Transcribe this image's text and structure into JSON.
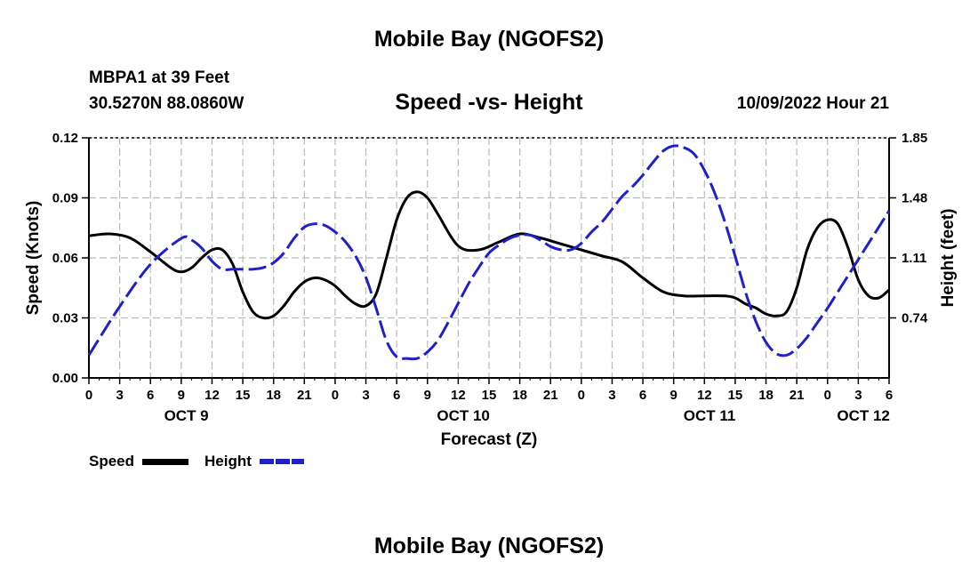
{
  "header": {
    "title": "Mobile Bay (NGOFS2)",
    "station": "MBPA1 at 39 Feet",
    "coords": "30.5270N  88.0860W",
    "subtitle": "Speed -vs- Height",
    "datetime": "10/09/2022 Hour 21"
  },
  "footer": {
    "title": "Mobile Bay (NGOFS2)"
  },
  "legend": {
    "speed_label": "Speed",
    "height_label": "Height"
  },
  "colors": {
    "speed": "#000000",
    "height": "#1f1fcc",
    "grid": "#bbbbbb"
  },
  "chart_data": {
    "type": "line",
    "xlabel": "Forecast (Z)",
    "ylabel": "Speed (Knots)",
    "y2label": "Height (feet)",
    "xlim": [
      0,
      78
    ],
    "ylim": [
      0,
      0.12
    ],
    "y2lim": [
      0.37,
      1.85
    ],
    "x_ticks": [
      0,
      3,
      6,
      9,
      12,
      15,
      18,
      21,
      24,
      27,
      30,
      33,
      36,
      39,
      42,
      45,
      48,
      51,
      54,
      57,
      60,
      63,
      66,
      69,
      72,
      75,
      78
    ],
    "x_tick_labels": [
      "0",
      "3",
      "6",
      "9",
      "12",
      "15",
      "18",
      "21",
      "0",
      "3",
      "6",
      "9",
      "12",
      "15",
      "18",
      "21",
      "0",
      "3",
      "6",
      "9",
      "12",
      "15",
      "18",
      "21",
      "0",
      "3",
      "6"
    ],
    "y_ticks": [
      0,
      0.03,
      0.06,
      0.09,
      0.12
    ],
    "y_tick_labels": [
      "0.00",
      "0.03",
      "0.06",
      "0.09",
      "0.12"
    ],
    "y2_ticks": [
      0.74,
      1.11,
      1.48,
      1.85
    ],
    "y2_tick_labels": [
      "0.74",
      "1.11",
      "1.48",
      "1.85"
    ],
    "date_labels": [
      {
        "x": 9.5,
        "label": "OCT 9"
      },
      {
        "x": 36.5,
        "label": "OCT 10"
      },
      {
        "x": 60.5,
        "label": "OCT 11"
      },
      {
        "x": 75.5,
        "label": "OCT 12"
      }
    ],
    "series": [
      {
        "name": "Speed",
        "axis": "left",
        "style": "solid",
        "x": [
          0,
          2,
          4,
          6,
          8,
          9,
          10,
          11,
          12,
          13,
          14,
          15,
          16,
          17,
          18,
          19,
          20,
          21,
          22,
          23,
          24,
          25,
          26,
          27,
          28,
          29,
          30,
          31,
          32,
          33,
          34,
          36,
          38,
          40,
          42,
          44,
          46,
          48,
          50,
          52,
          54,
          56,
          58,
          60,
          62,
          63,
          64,
          65,
          66,
          67,
          68,
          69,
          70,
          71,
          72,
          73,
          74,
          75,
          76,
          77,
          78
        ],
        "values": [
          0.071,
          0.072,
          0.07,
          0.063,
          0.055,
          0.053,
          0.055,
          0.06,
          0.064,
          0.064,
          0.057,
          0.043,
          0.033,
          0.03,
          0.031,
          0.036,
          0.043,
          0.048,
          0.05,
          0.049,
          0.046,
          0.041,
          0.037,
          0.036,
          0.042,
          0.06,
          0.079,
          0.09,
          0.093,
          0.09,
          0.082,
          0.066,
          0.064,
          0.068,
          0.072,
          0.07,
          0.067,
          0.064,
          0.061,
          0.058,
          0.05,
          0.043,
          0.041,
          0.041,
          0.041,
          0.04,
          0.037,
          0.035,
          0.032,
          0.031,
          0.033,
          0.045,
          0.064,
          0.075,
          0.079,
          0.077,
          0.065,
          0.049,
          0.041,
          0.04,
          0.044
        ]
      },
      {
        "name": "Height",
        "axis": "right",
        "style": "dashed",
        "x": [
          0,
          3,
          6,
          9,
          10,
          11,
          12,
          13,
          14,
          15,
          16,
          17,
          18,
          19,
          20,
          21,
          22,
          23,
          24,
          25,
          26,
          27,
          28,
          29,
          30,
          31,
          32,
          33,
          34,
          35,
          36,
          37,
          38,
          39,
          40,
          41,
          42,
          43,
          44,
          45,
          46,
          47,
          48,
          49,
          50,
          51,
          52,
          53,
          54,
          55,
          56,
          57,
          58,
          59,
          60,
          61,
          62,
          63,
          64,
          65,
          66,
          67,
          68,
          69,
          70,
          71,
          72,
          73,
          74,
          75,
          76,
          77,
          78
        ],
        "values": [
          0.51,
          0.81,
          1.07,
          1.23,
          1.22,
          1.17,
          1.09,
          1.04,
          1.04,
          1.04,
          1.04,
          1.05,
          1.08,
          1.14,
          1.23,
          1.3,
          1.32,
          1.31,
          1.27,
          1.21,
          1.12,
          0.99,
          0.8,
          0.6,
          0.5,
          0.49,
          0.49,
          0.53,
          0.6,
          0.71,
          0.83,
          0.95,
          1.05,
          1.14,
          1.19,
          1.23,
          1.25,
          1.25,
          1.22,
          1.18,
          1.16,
          1.16,
          1.2,
          1.27,
          1.33,
          1.41,
          1.49,
          1.55,
          1.62,
          1.7,
          1.77,
          1.8,
          1.79,
          1.75,
          1.65,
          1.51,
          1.33,
          1.12,
          0.9,
          0.72,
          0.59,
          0.52,
          0.51,
          0.55,
          0.62,
          0.71,
          0.8,
          0.9,
          1.0,
          1.1,
          1.2,
          1.3,
          1.4
        ]
      }
    ]
  }
}
